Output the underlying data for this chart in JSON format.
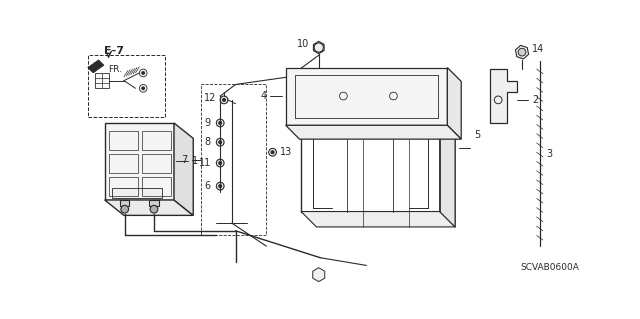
{
  "bg": "#ffffff",
  "lc": "#2a2a2a",
  "part_code": "SCVAB0600A",
  "fig_w": 6.4,
  "fig_h": 3.19
}
